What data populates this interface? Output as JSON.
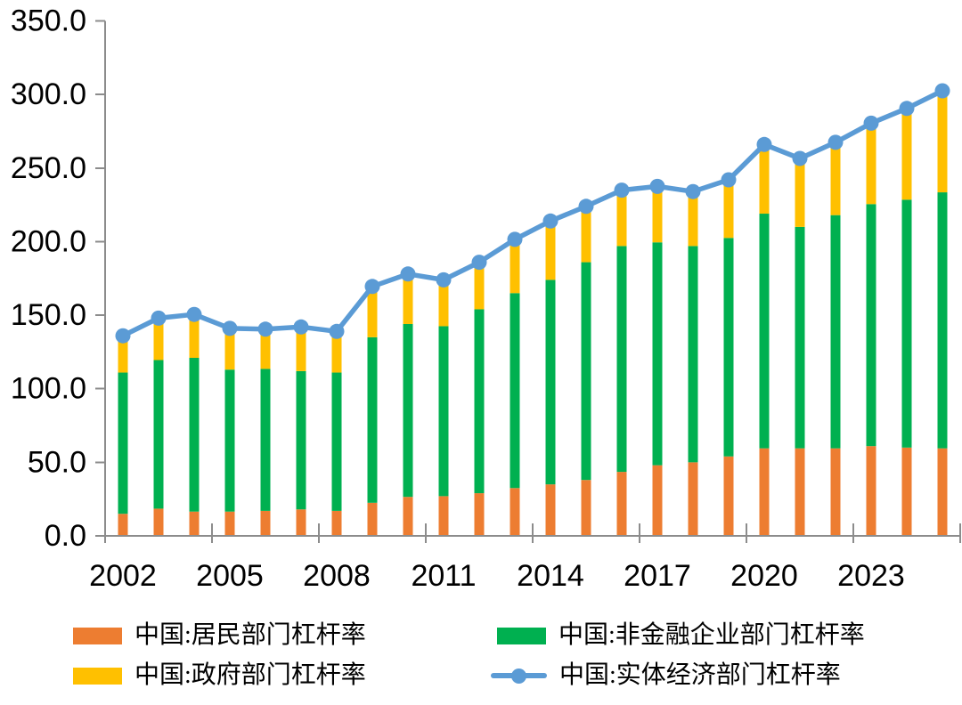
{
  "chart_data": {
    "type": "bar",
    "subtype": "stacked-bars-with-line-overlay",
    "title": "",
    "categories": [
      2002,
      2003,
      2004,
      2005,
      2006,
      2007,
      2008,
      2009,
      2010,
      2011,
      2012,
      2013,
      2014,
      2015,
      2016,
      2017,
      2018,
      2019,
      2020,
      2021,
      2022,
      2023,
      2024,
      2025
    ],
    "series": [
      {
        "name": "中国:居民部门杠杆率",
        "render": "bar",
        "stack_order": 1,
        "color": "#ED7D31",
        "values": [
          15,
          18.5,
          16.5,
          16.5,
          17,
          18,
          17,
          22.5,
          26.5,
          27,
          29,
          32.5,
          35,
          38,
          43.5,
          48,
          50,
          54,
          59.5,
          59.5,
          59.5,
          61,
          60,
          59.5
        ]
      },
      {
        "name": "中国:非金融企业部门杠杆率",
        "render": "bar",
        "stack_order": 2,
        "color": "#00B050",
        "values": [
          96,
          101,
          104.5,
          96.5,
          96.5,
          94,
          94,
          112.5,
          117.5,
          115.5,
          125,
          132.5,
          139,
          148,
          153.5,
          151.5,
          147,
          148.5,
          159.5,
          150.5,
          158.5,
          164.5,
          168.5,
          174
        ]
      },
      {
        "name": "中国:政府部门杠杆率",
        "render": "bar",
        "stack_order": 3,
        "color": "#FFC000",
        "values": [
          25,
          28.5,
          29.5,
          28,
          27,
          30,
          28,
          34.5,
          34,
          31.5,
          32,
          36.5,
          40,
          38,
          38,
          38,
          37,
          39.5,
          47,
          46.5,
          49.5,
          55,
          62,
          69
        ]
      },
      {
        "name": "中国:实体经济部门杠杆率",
        "render": "line",
        "color": "#5B9BD5",
        "marker": "circle",
        "values": [
          136,
          148,
          150.5,
          141,
          140.5,
          142,
          139,
          169.5,
          178,
          174,
          186,
          201.5,
          214,
          224,
          235,
          237.5,
          234,
          242,
          266,
          256.5,
          267.5,
          280.5,
          290.5,
          302.5
        ]
      }
    ],
    "y_axis": {
      "min": 0,
      "max": 350,
      "step": 50,
      "tick_labels": [
        "0.0",
        "50.0",
        "100.0",
        "150.0",
        "200.0",
        "250.0",
        "300.0",
        "350.0"
      ]
    },
    "x_axis": {
      "tick_labels": [
        "2002",
        "2005",
        "2008",
        "2011",
        "2014",
        "2017",
        "2020",
        "2023"
      ],
      "labeled_year_interval": 3,
      "group_boundary_tick_interval": 3
    },
    "grid": false,
    "legend_position": "bottom",
    "axis_color": "#8C8C8C",
    "text_color": "#000000"
  },
  "legend": {
    "items": [
      {
        "label": "中国:居民部门杠杆率",
        "symbol": "rect",
        "color": "#ED7D31"
      },
      {
        "label": "中国:非金融企业部门杠杆率",
        "symbol": "rect",
        "color": "#00B050"
      },
      {
        "label": "中国:政府部门杠杆率",
        "symbol": "rect",
        "color": "#FFC000"
      },
      {
        "label": "中国:实体经济部门杠杆率",
        "symbol": "line-marker",
        "color": "#5B9BD5"
      }
    ]
  }
}
